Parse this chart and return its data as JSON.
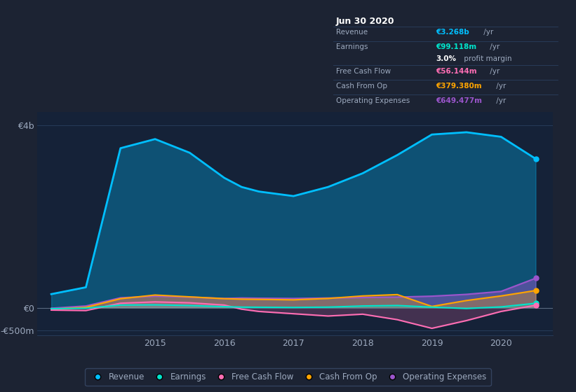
{
  "bg_color": "#1c2333",
  "plot_bg_color": "#1a2d45",
  "chart_bg_color": "#152238",
  "grid_color": "#2a3f5f",
  "text_color": "#9daabf",
  "title_text": "Jun 30 2020",
  "x": [
    2013.5,
    2014.0,
    2014.5,
    2015.0,
    2015.5,
    2016.0,
    2016.25,
    2016.5,
    2017.0,
    2017.5,
    2018.0,
    2018.5,
    2019.0,
    2019.5,
    2020.0,
    2020.5
  ],
  "revenue": [
    300,
    450,
    3500,
    3700,
    3400,
    2850,
    2650,
    2550,
    2450,
    2650,
    2950,
    3350,
    3800,
    3850,
    3750,
    3268
  ],
  "earnings": [
    -20,
    -10,
    60,
    65,
    50,
    25,
    15,
    12,
    8,
    15,
    40,
    50,
    15,
    -15,
    20,
    99
  ],
  "free_cash_flow": [
    -50,
    -60,
    100,
    130,
    110,
    60,
    -30,
    -80,
    -130,
    -180,
    -140,
    -260,
    -450,
    -280,
    -80,
    56
  ],
  "cash_from_op": [
    -30,
    10,
    200,
    280,
    240,
    200,
    190,
    185,
    175,
    205,
    260,
    290,
    30,
    160,
    260,
    379
  ],
  "operating_expenses": [
    -10,
    40,
    220,
    255,
    235,
    205,
    215,
    210,
    205,
    215,
    225,
    235,
    255,
    295,
    360,
    649
  ],
  "ylim_min": -600,
  "ylim_max": 4300,
  "ytick_vals": [
    -500,
    0,
    4000
  ],
  "ytick_labels": [
    "-€500m",
    "€0",
    "€4b"
  ],
  "xtick_vals": [
    2015.0,
    2016.0,
    2017.0,
    2018.0,
    2019.0,
    2020.0
  ],
  "xtick_labels": [
    "2015",
    "2016",
    "2017",
    "2018",
    "2019",
    "2020"
  ],
  "xlim_min": 2013.3,
  "xlim_max": 2020.75,
  "colors": {
    "revenue": "#00bfff",
    "earnings": "#00e5cc",
    "free_cash_flow": "#ff6eb4",
    "cash_from_op": "#ffa500",
    "operating_expenses": "#9b55cc"
  },
  "revenue_fill_alpha": 0.5,
  "legend_labels": [
    "Revenue",
    "Earnings",
    "Free Cash Flow",
    "Cash From Op",
    "Operating Expenses"
  ],
  "legend_colors": [
    "#00bfff",
    "#00e5cc",
    "#ff6eb4",
    "#ffa500",
    "#9b55cc"
  ],
  "box_bg": "#080d15",
  "box_border": "#2a3f5f",
  "box_title": "Jun 30 2020",
  "box_rows": [
    {
      "label": "Revenue",
      "value": "€3.268b",
      "suffix": " /yr",
      "vcolor": "#00bfff",
      "divider_above": true
    },
    {
      "label": "Earnings",
      "value": "€99.118m",
      "suffix": " /yr",
      "vcolor": "#00e5cc",
      "divider_above": true
    },
    {
      "label": "",
      "value": "3.0%",
      "suffix": " profit margin",
      "vcolor": "#ffffff",
      "divider_above": false
    },
    {
      "label": "Free Cash Flow",
      "value": "€56.144m",
      "suffix": " /yr",
      "vcolor": "#ff6eb4",
      "divider_above": true
    },
    {
      "label": "Cash From Op",
      "value": "€379.380m",
      "suffix": " /yr",
      "vcolor": "#ffa500",
      "divider_above": true
    },
    {
      "label": "Operating Expenses",
      "value": "€649.477m",
      "suffix": " /yr",
      "vcolor": "#9b55cc",
      "divider_above": true
    }
  ]
}
